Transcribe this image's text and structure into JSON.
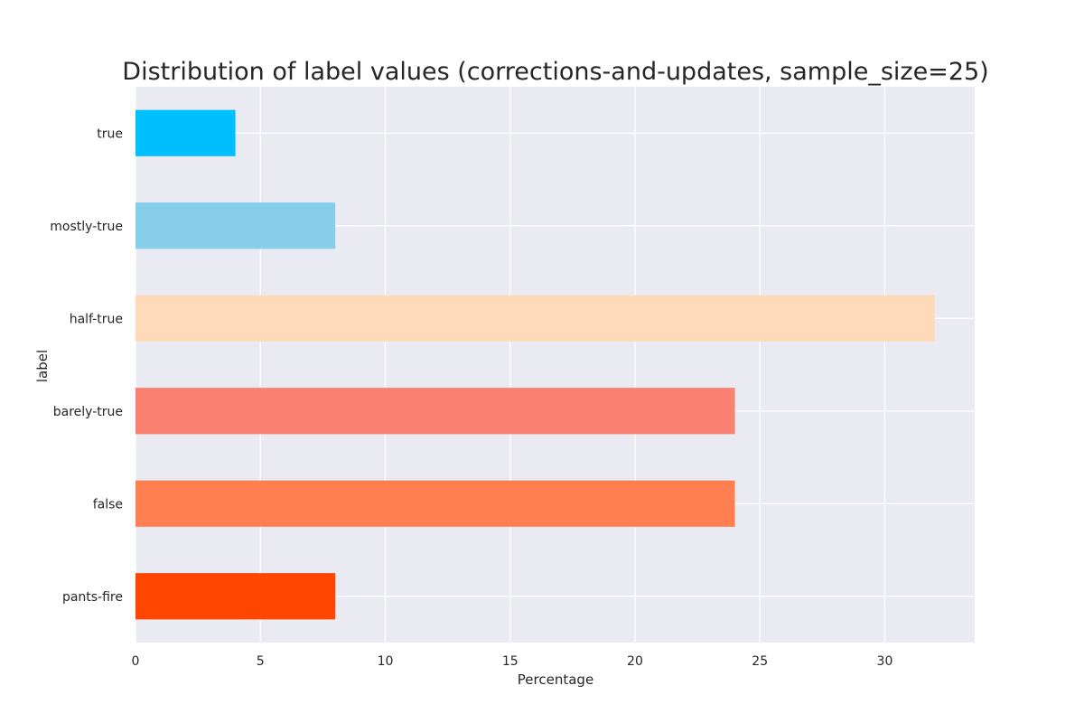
{
  "chart_data": {
    "type": "bar",
    "orientation": "horizontal",
    "title": "Distribution of label values (corrections-and-updates, sample_size=25)",
    "xlabel": "Percentage",
    "ylabel": "label",
    "categories": [
      "true",
      "mostly-true",
      "half-true",
      "barely-true",
      "false",
      "pants-fire"
    ],
    "values": [
      4,
      8,
      32,
      24,
      24,
      8
    ],
    "colors": [
      "#00bfff",
      "#87ceeb",
      "#ffdab9",
      "#fa8072",
      "#ff7f50",
      "#ff4500"
    ],
    "xlim": [
      0,
      33.6
    ],
    "xticks": [
      0,
      5,
      10,
      15,
      20,
      25,
      30
    ],
    "grid": true,
    "background": "#eaeaf2",
    "grid_color": "#ffffff"
  }
}
